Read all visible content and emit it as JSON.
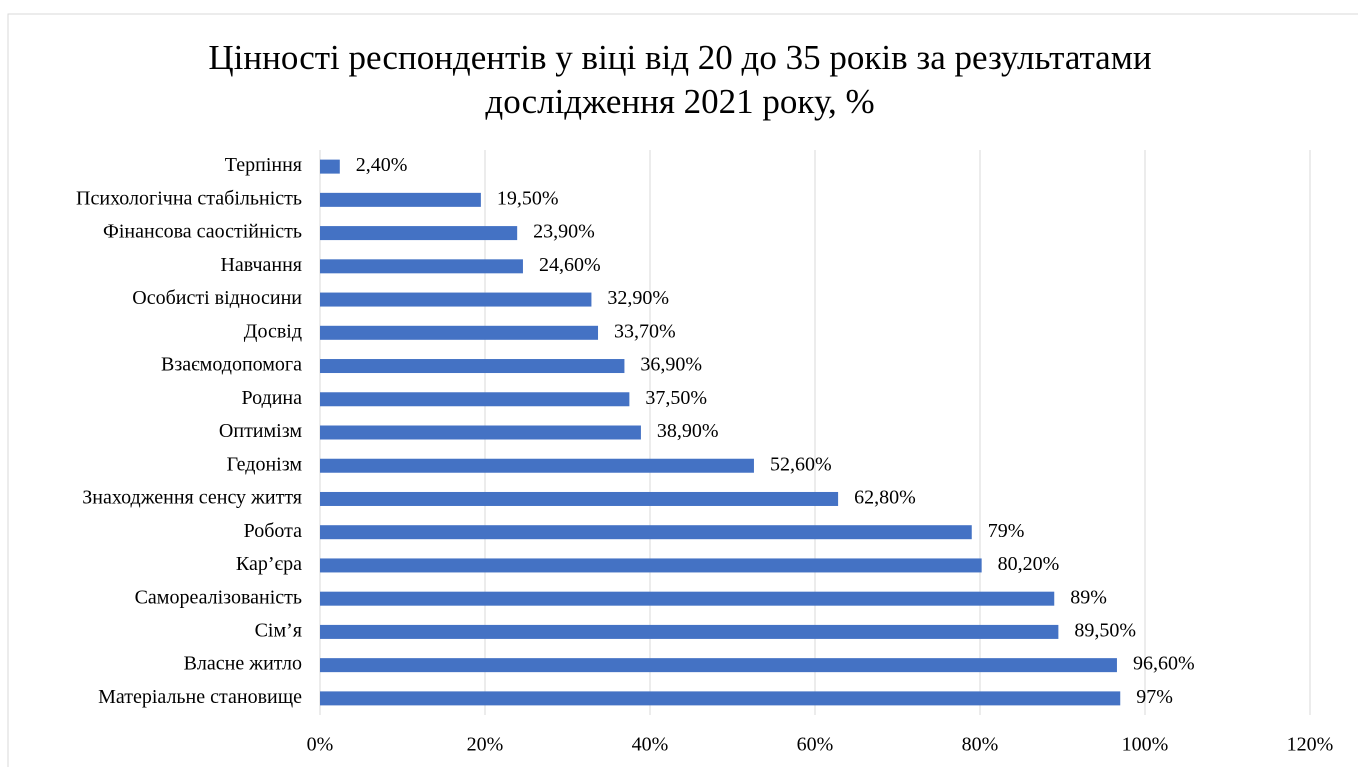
{
  "chart_data": {
    "type": "bar",
    "orientation": "horizontal",
    "title": "Цінності респондентів у віці від 20 до 35 років за результатами дослідження 2021 року, %",
    "categories": [
      "Терпіння",
      "Психологічна стабільність",
      "Фінансова саостійність",
      "Навчання",
      "Особисті відносини",
      "Досвід",
      "Взаємодопомога",
      "Родина",
      "Оптимізм",
      "Гедонізм",
      "Знаходження сенсу життя",
      "Робота",
      "Кар’єра",
      "Самореалізованість",
      "Сім’я",
      "Власне житло",
      "Матеріальне становище"
    ],
    "values": [
      2.4,
      19.5,
      23.9,
      24.6,
      32.9,
      33.7,
      36.9,
      37.5,
      38.9,
      52.6,
      62.8,
      79,
      80.2,
      89,
      89.5,
      96.6,
      97
    ],
    "value_labels": [
      "2,40%",
      "19,50%",
      "23,90%",
      "24,60%",
      "32,90%",
      "33,70%",
      "36,90%",
      "37,50%",
      "38,90%",
      "52,60%",
      "62,80%",
      "79%",
      "80,20%",
      "89%",
      "89,50%",
      "96,60%",
      "97%"
    ],
    "color": "#4472c4",
    "xlim": [
      0,
      120
    ],
    "xticks": [
      {
        "value": 0,
        "label": "0%"
      },
      {
        "value": 20,
        "label": "20%"
      },
      {
        "value": 40,
        "label": "40%"
      },
      {
        "value": 60,
        "label": "60%"
      },
      {
        "value": 80,
        "label": "80%"
      },
      {
        "value": 100,
        "label": "100%"
      },
      {
        "value": 120,
        "label": "120%"
      }
    ],
    "grid": true
  }
}
